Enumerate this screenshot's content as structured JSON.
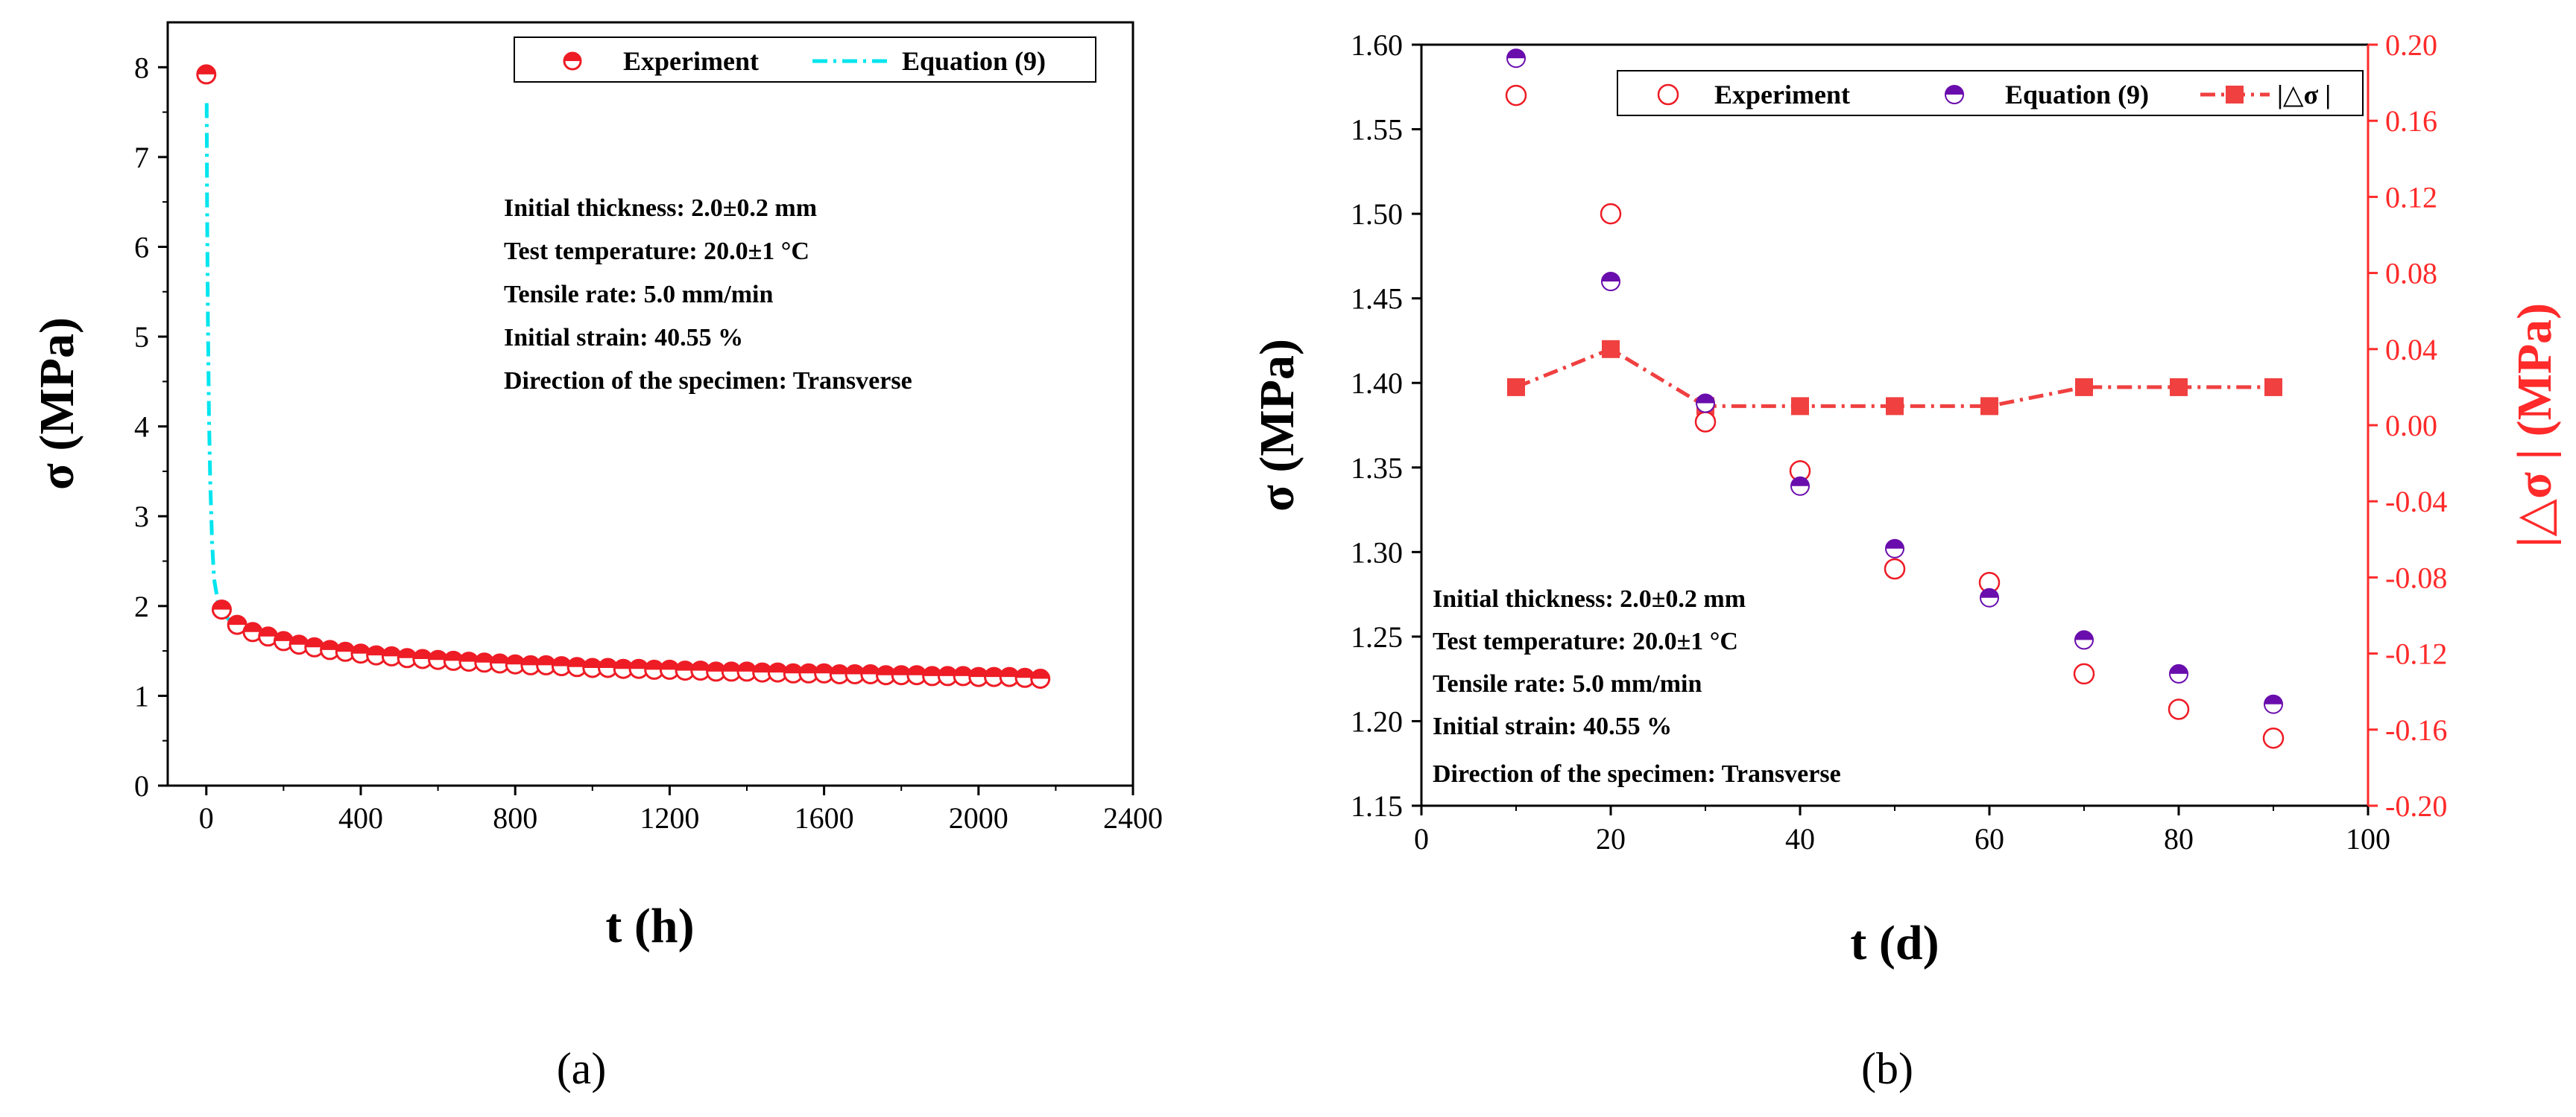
{
  "chart_data": [
    {
      "type": "scatter",
      "panel": "(a)",
      "xlabel": "t (h)",
      "ylabel": "σ (MPa)",
      "xlim": [
        -100,
        2400
      ],
      "ylim": [
        0,
        8.5
      ],
      "xticks": [
        "0",
        "400",
        "800",
        "1200",
        "1600",
        "2000",
        "2400"
      ],
      "yticks": [
        "0",
        "1",
        "2",
        "3",
        "4",
        "5",
        "6",
        "7",
        "8"
      ],
      "legend": {
        "experiment": "Experiment",
        "equation": "Equation (9)"
      },
      "annotations": [
        "Initial thickness: 2.0±0.2 mm",
        "Test temperature: 20.0±1 °C",
        "Tensile rate: 5.0 mm/min",
        "Initial strain: 40.55 %",
        "Direction of the specimen: Transverse"
      ],
      "series": [
        {
          "name": "Experiment",
          "x": [
            0,
            40,
            80,
            120,
            160,
            200,
            240,
            280,
            320,
            360,
            400,
            440,
            480,
            520,
            560,
            600,
            640,
            680,
            720,
            760,
            800,
            840,
            880,
            920,
            960,
            1000,
            1040,
            1080,
            1120,
            1160,
            1200,
            1240,
            1280,
            1320,
            1360,
            1400,
            1440,
            1480,
            1520,
            1560,
            1600,
            1640,
            1680,
            1720,
            1760,
            1800,
            1840,
            1880,
            1920,
            1960,
            2000,
            2040,
            2080,
            2120,
            2160
          ],
          "y": [
            7.92,
            1.96,
            1.79,
            1.71,
            1.66,
            1.61,
            1.57,
            1.54,
            1.51,
            1.49,
            1.47,
            1.45,
            1.44,
            1.42,
            1.41,
            1.4,
            1.39,
            1.38,
            1.37,
            1.36,
            1.35,
            1.34,
            1.34,
            1.33,
            1.32,
            1.31,
            1.31,
            1.3,
            1.3,
            1.29,
            1.29,
            1.28,
            1.28,
            1.27,
            1.27,
            1.27,
            1.26,
            1.26,
            1.25,
            1.25,
            1.25,
            1.24,
            1.24,
            1.24,
            1.23,
            1.23,
            1.23,
            1.22,
            1.22,
            1.22,
            1.21,
            1.21,
            1.21,
            1.2,
            1.19
          ]
        },
        {
          "name": "Equation (9)",
          "x": [
            1,
            2,
            4,
            7,
            10,
            15,
            20,
            30,
            45,
            60,
            80,
            100,
            140,
            180,
            240,
            300,
            400,
            500,
            600,
            800,
            1000,
            1200,
            1400,
            1600,
            1800,
            2000,
            2160
          ],
          "y": [
            7.6,
            6.5,
            5.2,
            4.1,
            3.4,
            2.7,
            2.3,
            2.05,
            1.92,
            1.84,
            1.77,
            1.72,
            1.65,
            1.6,
            1.55,
            1.51,
            1.46,
            1.42,
            1.39,
            1.35,
            1.31,
            1.29,
            1.27,
            1.25,
            1.23,
            1.22,
            1.21
          ]
        }
      ]
    },
    {
      "type": "scatter",
      "panel": "(b)",
      "xlabel": "t (d)",
      "ylabel": "σ (MPa)",
      "ylabel_right": "|△σ | (MPa)",
      "xlim": [
        0,
        100
      ],
      "ylim": [
        1.15,
        1.6
      ],
      "ylim_right": [
        -0.2,
        0.2
      ],
      "xticks": [
        "0",
        "20",
        "40",
        "60",
        "80",
        "100"
      ],
      "yticks": [
        "1.15",
        "1.20",
        "1.25",
        "1.30",
        "1.35",
        "1.40",
        "1.45",
        "1.50",
        "1.55",
        "1.60"
      ],
      "yticks_right": [
        "-0.20",
        "-0.16",
        "-0.12",
        "-0.08",
        "-0.04",
        "0.00",
        "0.04",
        "0.08",
        "0.12",
        "0.16",
        "0.20"
      ],
      "legend": {
        "experiment": "Experiment",
        "equation": "Equation (9)",
        "delta": "|△σ |"
      },
      "annotations": [
        "Initial thickness: 2.0±0.2 mm",
        "Test temperature: 20.0±1 °C",
        "Tensile rate: 5.0 mm/min",
        "Initial strain: 40.55 %",
        "Direction of the specimen: Transverse"
      ],
      "series": [
        {
          "name": "Experiment",
          "x": [
            10,
            20,
            30,
            40,
            50,
            60,
            70,
            80,
            90
          ],
          "y": [
            1.57,
            1.5,
            1.377,
            1.348,
            1.29,
            1.282,
            1.228,
            1.207,
            1.19
          ]
        },
        {
          "name": "Equation (9)",
          "x": [
            10,
            20,
            30,
            40,
            50,
            60,
            70,
            80,
            90
          ],
          "y": [
            1.592,
            1.46,
            1.388,
            1.339,
            1.302,
            1.273,
            1.248,
            1.228,
            1.21
          ]
        },
        {
          "name": "|△σ |",
          "axis": "right",
          "x": [
            10,
            20,
            30,
            40,
            50,
            60,
            70,
            80,
            90
          ],
          "y": [
            0.02,
            0.04,
            0.01,
            0.01,
            0.01,
            0.01,
            0.02,
            0.02,
            0.02
          ]
        }
      ]
    }
  ],
  "captions": {
    "a": "(a)",
    "b": "(b)"
  },
  "colors": {
    "experiment": "#ee1c25",
    "equation_a": "#00e5ee",
    "equation_b": "#6a0dad",
    "delta": "#f04040"
  }
}
